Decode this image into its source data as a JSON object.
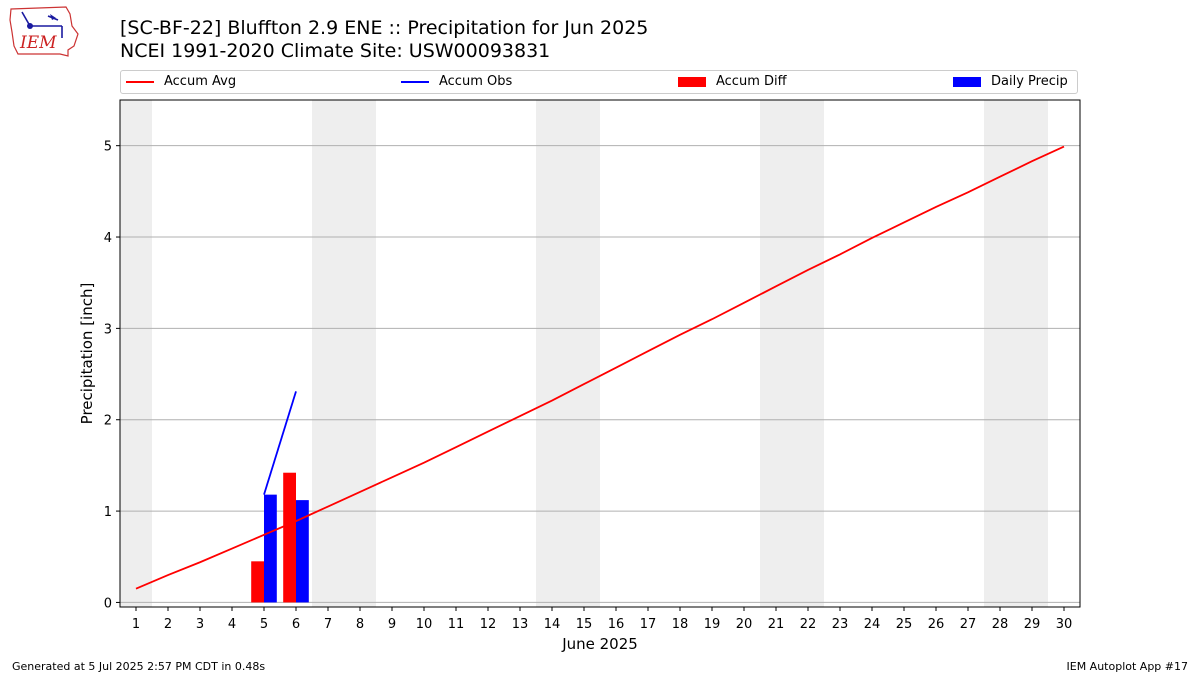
{
  "title_line1": "[SC-BF-22] Bluffton 2.9 ENE :: Precipitation for Jun 2025",
  "title_line2": "NCEI 1991-2020 Climate Site: USW00093831",
  "logo_text": "IEM",
  "footer_left": "Generated at 5 Jul 2025 2:57 PM CDT in 0.48s",
  "footer_right": "IEM Autoplot App #17",
  "colors": {
    "accum_avg": "#ff0000",
    "accum_obs": "#0000ff",
    "accum_diff": "#ff0000",
    "daily_precip": "#0000ff",
    "weekend_shade": "#eeeeee",
    "grid": "#b0b0b0"
  },
  "chart_data": {
    "type": "line",
    "title": "[SC-BF-22] Bluffton 2.9 ENE :: Precipitation for Jun 2025",
    "xlabel": "June 2025",
    "ylabel": "Precipitation [inch]",
    "x": [
      1,
      2,
      3,
      4,
      5,
      6,
      7,
      8,
      9,
      10,
      11,
      12,
      13,
      14,
      15,
      16,
      17,
      18,
      19,
      20,
      21,
      22,
      23,
      24,
      25,
      26,
      27,
      28,
      29,
      30
    ],
    "xlim": [
      0.5,
      30.5
    ],
    "ylim": [
      -0.05,
      5.5
    ],
    "yticks": [
      0,
      1,
      2,
      3,
      4,
      5
    ],
    "grid": "horizontal",
    "legend_position": "top",
    "weekend_shading_days": [
      [
        1,
        1
      ],
      [
        7,
        8
      ],
      [
        14,
        15
      ],
      [
        21,
        22
      ],
      [
        28,
        29
      ]
    ],
    "series": [
      {
        "name": "Accum Avg",
        "kind": "line",
        "x": [
          1,
          2,
          3,
          4,
          5,
          6,
          7,
          8,
          9,
          10,
          11,
          12,
          13,
          14,
          15,
          16,
          17,
          18,
          19,
          20,
          21,
          22,
          23,
          24,
          25,
          26,
          27,
          28,
          29,
          30
        ],
        "values": [
          0.15,
          0.3,
          0.44,
          0.59,
          0.74,
          0.89,
          1.05,
          1.21,
          1.37,
          1.53,
          1.7,
          1.87,
          2.04,
          2.21,
          2.39,
          2.57,
          2.75,
          2.93,
          3.1,
          3.28,
          3.46,
          3.64,
          3.81,
          3.99,
          4.16,
          4.33,
          4.49,
          4.66,
          4.83,
          4.99
        ]
      },
      {
        "name": "Accum Obs",
        "kind": "line",
        "x": [
          5,
          6
        ],
        "values": [
          1.18,
          2.31
        ]
      },
      {
        "name": "Accum Diff",
        "kind": "bar",
        "x": [
          5,
          6
        ],
        "values": [
          0.45,
          1.42
        ]
      },
      {
        "name": "Daily Precip",
        "kind": "bar",
        "x": [
          5,
          6
        ],
        "values": [
          1.18,
          1.12
        ]
      }
    ]
  }
}
